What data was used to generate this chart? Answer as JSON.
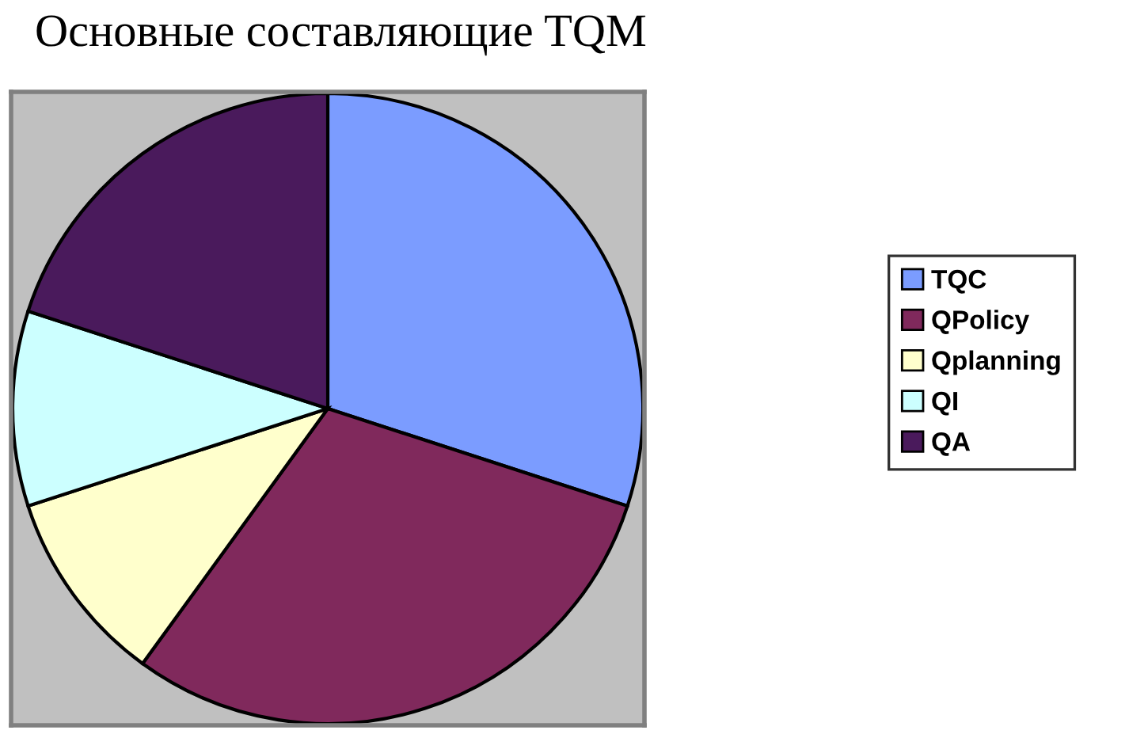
{
  "chart_data": {
    "type": "pie",
    "title": "Основные составляющие TQM",
    "categories": [
      "TQC",
      "QPolicy",
      "Qplanning",
      "QI",
      "QA"
    ],
    "values": [
      30,
      30,
      10,
      10,
      20
    ],
    "colors": [
      "#7b9cff",
      "#80295c",
      "#ffffcc",
      "#ccffff",
      "#4a1a5c"
    ],
    "legend": "right"
  }
}
